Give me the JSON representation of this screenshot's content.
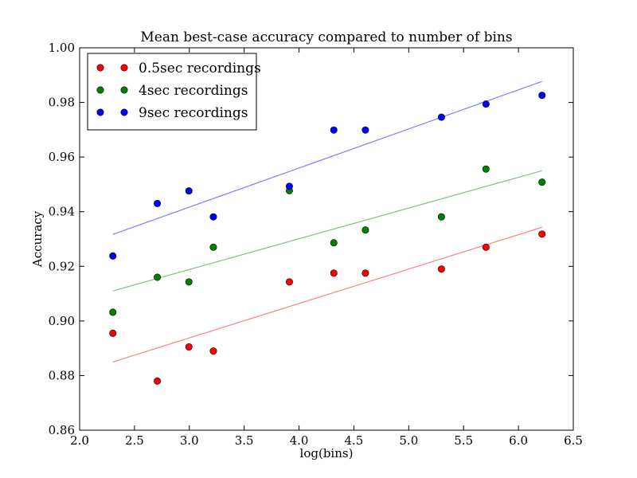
{
  "chart_data": {
    "type": "scatter",
    "title": "Mean best-case accuracy compared to number of bins",
    "xlabel": "log(bins)",
    "ylabel": "Accuracy",
    "xlim": [
      2.0,
      6.5
    ],
    "ylim": [
      0.86,
      1.0
    ],
    "x_ticks": [
      "2.0",
      "2.5",
      "3.0",
      "3.5",
      "4.0",
      "4.5",
      "5.0",
      "5.5",
      "6.0",
      "6.5"
    ],
    "y_ticks": [
      "0.86",
      "0.88",
      "0.90",
      "0.92",
      "0.94",
      "0.96",
      "0.98",
      "1.00"
    ],
    "grid": false,
    "legend_position": "top-left",
    "series": [
      {
        "name": "0.5sec recordings",
        "color": "#ff0000",
        "trend_color": "#ff8080",
        "points": [
          {
            "x": 2.303,
            "y": 0.8955
          },
          {
            "x": 2.708,
            "y": 0.878
          },
          {
            "x": 2.996,
            "y": 0.8905
          },
          {
            "x": 3.219,
            "y": 0.889
          },
          {
            "x": 3.912,
            "y": 0.9143
          },
          {
            "x": 4.317,
            "y": 0.9175
          },
          {
            "x": 4.605,
            "y": 0.9175
          },
          {
            "x": 5.298,
            "y": 0.919
          },
          {
            "x": 5.704,
            "y": 0.927
          },
          {
            "x": 6.215,
            "y": 0.9318
          }
        ],
        "trend": {
          "x": [
            2.303,
            6.215
          ],
          "y": [
            0.885,
            0.9343
          ]
        }
      },
      {
        "name": "4sec recordings",
        "color": "#008000",
        "trend_color": "#80c080",
        "points": [
          {
            "x": 2.303,
            "y": 0.9032
          },
          {
            "x": 2.708,
            "y": 0.916
          },
          {
            "x": 2.996,
            "y": 0.9143
          },
          {
            "x": 3.219,
            "y": 0.927
          },
          {
            "x": 3.912,
            "y": 0.9477
          },
          {
            "x": 4.317,
            "y": 0.9286
          },
          {
            "x": 4.605,
            "y": 0.9333
          },
          {
            "x": 5.298,
            "y": 0.9381
          },
          {
            "x": 5.704,
            "y": 0.9556
          },
          {
            "x": 6.215,
            "y": 0.9508
          }
        ],
        "trend": {
          "x": [
            2.303,
            6.215
          ],
          "y": [
            0.911,
            0.955
          ]
        }
      },
      {
        "name": "9sec recordings",
        "color": "#0000ff",
        "trend_color": "#8080ff",
        "points": [
          {
            "x": 2.303,
            "y": 0.9238
          },
          {
            "x": 2.708,
            "y": 0.943
          },
          {
            "x": 2.996,
            "y": 0.9476
          },
          {
            "x": 3.219,
            "y": 0.9381
          },
          {
            "x": 3.912,
            "y": 0.9493
          },
          {
            "x": 4.317,
            "y": 0.9699
          },
          {
            "x": 4.605,
            "y": 0.9699
          },
          {
            "x": 5.298,
            "y": 0.9746
          },
          {
            "x": 5.704,
            "y": 0.9794
          },
          {
            "x": 6.215,
            "y": 0.9826
          }
        ],
        "trend": {
          "x": [
            2.303,
            6.215
          ],
          "y": [
            0.9317,
            0.9877
          ]
        }
      }
    ]
  }
}
